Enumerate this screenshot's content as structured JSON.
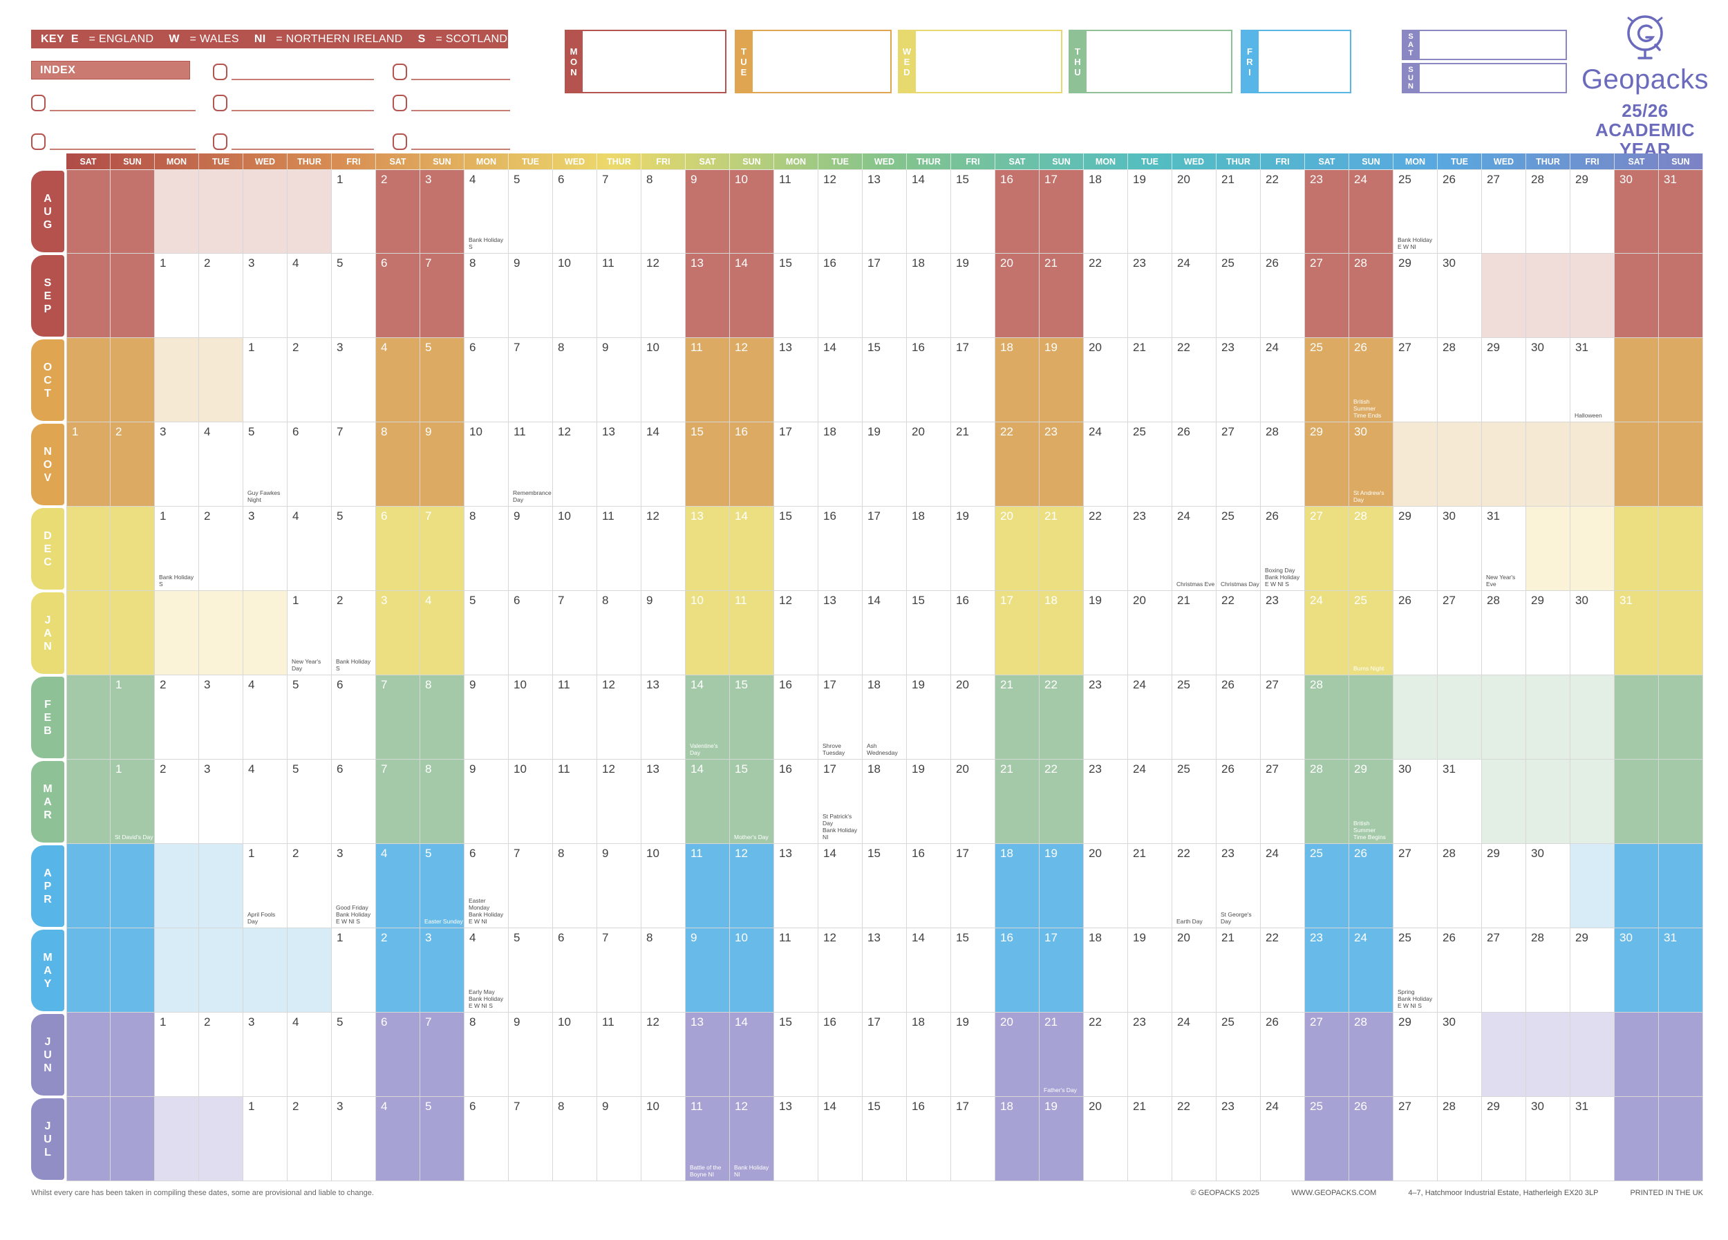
{
  "key": {
    "label": "KEY",
    "entries": [
      {
        "code": "E",
        "name": "ENGLAND"
      },
      {
        "code": "W",
        "name": "WALES"
      },
      {
        "code": "NI",
        "name": "NORTHERN IRELAND"
      },
      {
        "code": "S",
        "name": "SCOTLAND"
      }
    ]
  },
  "index_label": "INDEX",
  "day_boxes": [
    "MON",
    "TUE",
    "WED",
    "THU",
    "FRI",
    "SAT",
    "SUN"
  ],
  "box_colors": {
    "MON": "#b5534e",
    "TUE": "#dfa550",
    "WED": "#e7d96d",
    "THU": "#8fc197",
    "FRI": "#57b6e7",
    "SAT": "#8a87c2",
    "SUN": "#8a87c2"
  },
  "branding": {
    "logo_text": "Geopacks",
    "title_line1": "25/26 ACADEMIC",
    "title_line2": "YEAR PLANNER",
    "website": "GEOPACKS.COM",
    "accent_color": "#6b6bbd"
  },
  "planner_grid": {
    "columns": 37,
    "day_pattern": [
      "SAT",
      "SUN",
      "MON",
      "TUE",
      "WED",
      "THUR",
      "FRI"
    ],
    "header_gradient": [
      "#b04b47",
      "#d88e53",
      "#ecd96b",
      "#86c48b",
      "#53bdc2",
      "#58a9e0",
      "#7d82c4"
    ],
    "themes": {
      "red": {
        "label": "#b5524e",
        "weekend": "#c3726c",
        "pale": "#f0ddd9"
      },
      "orange": {
        "label": "#dfa550",
        "weekend": "#dcaa62",
        "pale": "#f6e9d3"
      },
      "yellow": {
        "label": "#e9dc74",
        "weekend": "#ebdf82",
        "pale": "#faf3d8"
      },
      "green": {
        "label": "#8fc197",
        "weekend": "#a4c9a8",
        "pale": "#e3efe4"
      },
      "blue": {
        "label": "#57b6e7",
        "weekend": "#68bbe9",
        "pale": "#d8ecf8"
      },
      "purple": {
        "label": "#918dc5",
        "weekend": "#a6a2d3",
        "pale": "#dfddef"
      }
    },
    "months": [
      {
        "name": "AUG",
        "theme": "red",
        "first_col": 7,
        "days": 31,
        "events": [
          {
            "day": 4,
            "text": "Bank Holiday\nS"
          },
          {
            "day": 25,
            "text": "Bank Holiday\nE W NI"
          }
        ]
      },
      {
        "name": "SEP",
        "theme": "red",
        "first_col": 3,
        "days": 30,
        "events": []
      },
      {
        "name": "OCT",
        "theme": "orange",
        "first_col": 5,
        "days": 31,
        "events": [
          {
            "day": 26,
            "text": "British\nSummer\nTime Ends"
          },
          {
            "day": 31,
            "text": "Halloween"
          }
        ]
      },
      {
        "name": "NOV",
        "theme": "orange",
        "first_col": 1,
        "days": 30,
        "events": [
          {
            "day": 5,
            "text": "Guy Fawkes\nNight"
          },
          {
            "day": 11,
            "text": "Remembrance\nDay"
          },
          {
            "day": 30,
            "text": "St Andrew's Day"
          }
        ]
      },
      {
        "name": "DEC",
        "theme": "yellow",
        "first_col": 3,
        "days": 31,
        "events": [
          {
            "day": 1,
            "text": "Bank Holiday\nS"
          },
          {
            "day": 24,
            "text": "Christmas Eve"
          },
          {
            "day": 25,
            "text": "Christmas Day"
          },
          {
            "day": 26,
            "text": "Boxing Day\nBank Holiday\nE W NI S"
          },
          {
            "day": 31,
            "text": "New Year's Eve"
          }
        ]
      },
      {
        "name": "JAN",
        "theme": "yellow",
        "first_col": 6,
        "days": 31,
        "events": [
          {
            "day": 1,
            "text": "New Year's Day"
          },
          {
            "day": 2,
            "text": "Bank Holiday\nS"
          },
          {
            "day": 25,
            "text": "Burns Night"
          }
        ]
      },
      {
        "name": "FEB",
        "theme": "green",
        "first_col": 2,
        "days": 28,
        "events": [
          {
            "day": 14,
            "text": "Valentine's Day"
          },
          {
            "day": 17,
            "text": "Shrove Tuesday"
          },
          {
            "day": 18,
            "text": "Ash Wednesday"
          }
        ]
      },
      {
        "name": "MAR",
        "theme": "green",
        "first_col": 2,
        "days": 31,
        "events": [
          {
            "day": 1,
            "text": "St David's Day"
          },
          {
            "day": 15,
            "text": "Mother's Day"
          },
          {
            "day": 17,
            "text": "St Patrick's Day\nBank Holiday\nNI"
          },
          {
            "day": 29,
            "text": "British Summer\nTime Begins"
          }
        ]
      },
      {
        "name": "APR",
        "theme": "blue",
        "first_col": 5,
        "days": 30,
        "events": [
          {
            "day": 1,
            "text": "April Fools Day"
          },
          {
            "day": 3,
            "text": "Good Friday\nBank Holiday\nE W NI S"
          },
          {
            "day": 5,
            "text": "Easter Sunday"
          },
          {
            "day": 6,
            "text": "Easter Monday\nBank Holiday\nE W NI"
          },
          {
            "day": 22,
            "text": "Earth Day"
          },
          {
            "day": 23,
            "text": "St George's\nDay"
          }
        ]
      },
      {
        "name": "MAY",
        "theme": "blue",
        "first_col": 7,
        "days": 31,
        "events": [
          {
            "day": 4,
            "text": "Early May\nBank Holiday\nE W NI S"
          },
          {
            "day": 25,
            "text": "Spring\nBank Holiday\nE W NI S"
          }
        ]
      },
      {
        "name": "JUN",
        "theme": "purple",
        "first_col": 3,
        "days": 30,
        "events": [
          {
            "day": 21,
            "text": "Father's Day"
          }
        ]
      },
      {
        "name": "JUL",
        "theme": "purple",
        "first_col": 5,
        "days": 31,
        "events": [
          {
            "day": 11,
            "text": "Battle of the\nBoyne NI"
          },
          {
            "day": 12,
            "text": "Bank Holiday\nNI"
          }
        ]
      }
    ]
  },
  "footer": {
    "disclaimer": "Whilst every care has been taken in compiling these dates, some are provisional and liable to change.",
    "copyright": "© GEOPACKS 2025",
    "website": "WWW.GEOPACKS.COM",
    "address": "4–7, Hatchmoor Industrial Estate, Hatherleigh EX20 3LP",
    "printed": "PRINTED IN THE UK"
  }
}
